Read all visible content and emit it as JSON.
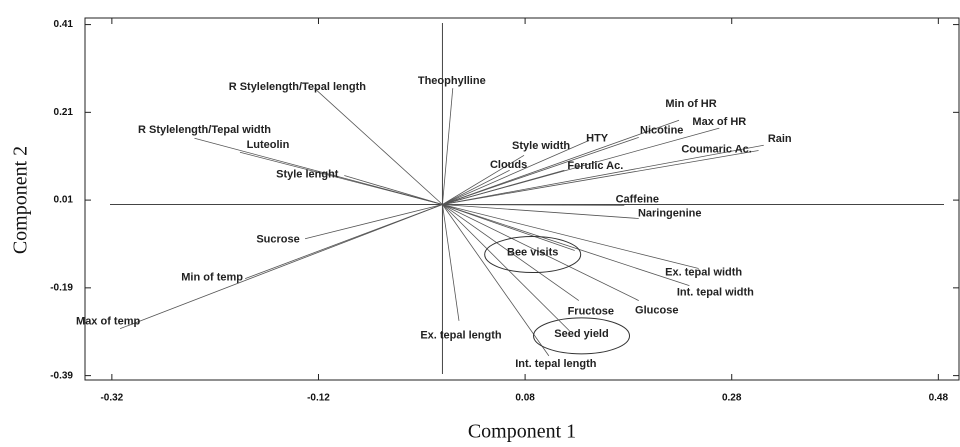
{
  "chart_data": {
    "type": "biplot",
    "x_label": "Component 1",
    "y_label": "Component 2",
    "xlim": [
      -0.346,
      0.5
    ],
    "ylim": [
      -0.4,
      0.425
    ],
    "xticks": [
      -0.32,
      -0.12,
      0.08,
      0.28,
      0.48
    ],
    "yticks": [
      0.41,
      0.21,
      0.01,
      -0.19,
      -0.39
    ],
    "color": "#555555",
    "points": [
      {
        "label": "R Stylelength/Tepal length",
        "x": -0.124,
        "y": 0.265
      },
      {
        "label": "R Stylelength/Tepal width",
        "x": -0.24,
        "y": 0.151
      },
      {
        "label": "Luteolin",
        "x": -0.196,
        "y": 0.119
      },
      {
        "label": "Style lenght",
        "x": -0.095,
        "y": 0.066
      },
      {
        "label": "Sucrose",
        "x": -0.133,
        "y": -0.078
      },
      {
        "label": "Min of temp",
        "x": -0.191,
        "y": -0.169
      },
      {
        "label": "Max of temp",
        "x": -0.312,
        "y": -0.283
      },
      {
        "label": "Theophylline",
        "x": 0.01,
        "y": 0.265
      },
      {
        "label": "Ex. tepal length",
        "x": 0.016,
        "y": -0.265
      },
      {
        "label": "Int. tepal length",
        "x": 0.103,
        "y": -0.345
      },
      {
        "label": "Seed yield",
        "x": 0.123,
        "y": -0.288
      },
      {
        "label": "Fructose",
        "x": 0.132,
        "y": -0.219
      },
      {
        "label": "Glucose",
        "x": 0.19,
        "y": -0.219
      },
      {
        "label": "Int. tepal width",
        "x": 0.239,
        "y": -0.185
      },
      {
        "label": "Ex. tepal width",
        "x": 0.248,
        "y": -0.146
      },
      {
        "label": "Bee visits",
        "x": 0.128,
        "y": -0.105
      },
      {
        "label": "Naringenine",
        "x": 0.19,
        "y": -0.032
      },
      {
        "label": "Caffeine",
        "x": 0.176,
        "y": -0.002
      },
      {
        "label": "Rain",
        "x": 0.311,
        "y": 0.135
      },
      {
        "label": "Coumaric Ac.",
        "x": 0.306,
        "y": 0.123
      },
      {
        "label": "Max of HR",
        "x": 0.268,
        "y": 0.174
      },
      {
        "label": "Min of HR",
        "x": 0.229,
        "y": 0.192
      },
      {
        "label": "Nicotine",
        "x": 0.19,
        "y": 0.153
      },
      {
        "label": "HTY",
        "x": 0.142,
        "y": 0.146
      },
      {
        "label": "Ferulic Ac.",
        "x": 0.118,
        "y": 0.078
      },
      {
        "label": "Style width",
        "x": 0.079,
        "y": 0.112
      },
      {
        "label": "Clouds",
        "x": 0.065,
        "y": 0.078
      }
    ]
  }
}
